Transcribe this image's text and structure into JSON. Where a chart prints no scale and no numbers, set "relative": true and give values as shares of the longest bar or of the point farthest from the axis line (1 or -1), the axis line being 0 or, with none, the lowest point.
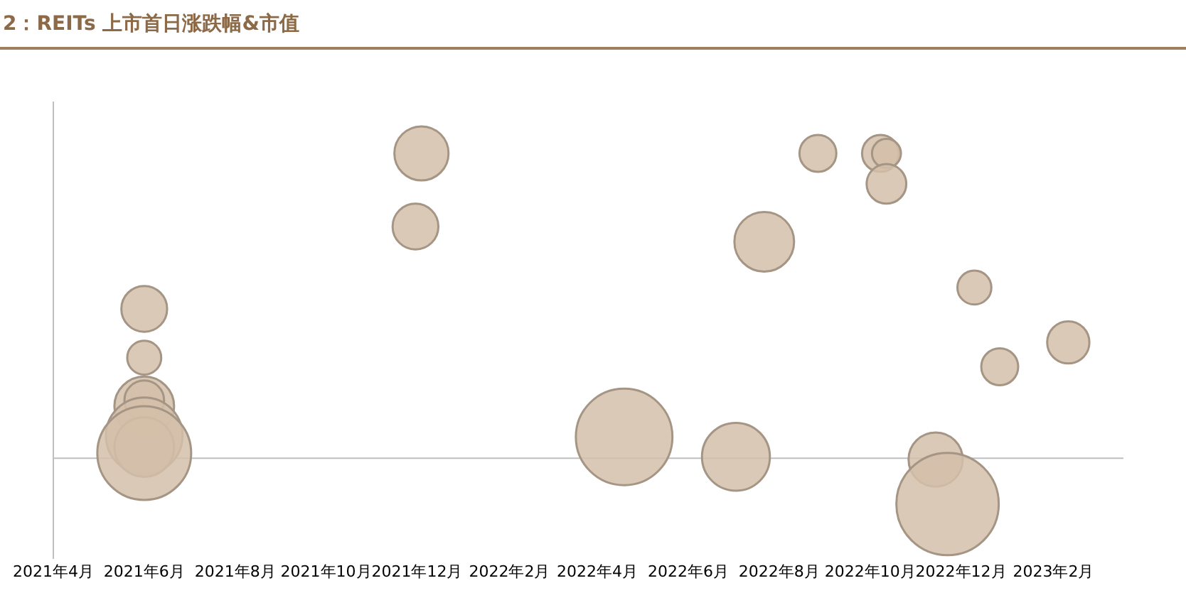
{
  "chart_data": {
    "type": "bubble",
    "title": "2：REITs 上市首日涨跌幅&市值",
    "relative": true,
    "xlim": [
      "2021-04-01",
      "2023-03-20"
    ],
    "xticks": [
      {
        "value": "2021-04-01",
        "label": "2021年4月"
      },
      {
        "value": "2021-06-01",
        "label": "2021年6月"
      },
      {
        "value": "2021-08-01",
        "label": "2021年8月"
      },
      {
        "value": "2021-10-01",
        "label": "2021年10月"
      },
      {
        "value": "2021-12-01",
        "label": "2021年12月"
      },
      {
        "value": "2022-02-01",
        "label": "2022年2月"
      },
      {
        "value": "2022-04-01",
        "label": "2022年4月"
      },
      {
        "value": "2022-06-01",
        "label": "2022年6月"
      },
      {
        "value": "2022-08-01",
        "label": "2022年8月"
      },
      {
        "value": "2022-10-01",
        "label": "2022年10月"
      },
      {
        "value": "2022-12-01",
        "label": "2022年12月"
      },
      {
        "value": "2023-02-01",
        "label": "2023年2月"
      }
    ],
    "grid": false,
    "legend": false,
    "series": [
      {
        "color": "#d3bfa9",
        "x": [
          "2021-06-01",
          "2021-06-01",
          "2021-06-01",
          "2021-06-01",
          "2021-06-01",
          "2021-06-01",
          "2021-06-01",
          "2021-12-04",
          "2021-11-30",
          "2022-08-27",
          "2022-10-08",
          "2022-10-12",
          "2022-10-12",
          "2022-07-22",
          "2022-12-10",
          "2022-12-27",
          "2023-02-11",
          "2022-04-19",
          "2022-07-03",
          "2022-11-14",
          "2022-11-22"
        ],
        "values": [
          0.49,
          0.33,
          0.17,
          0.19,
          0.074,
          0.037,
          0.017,
          1.0,
          0.76,
          1.0,
          1.0,
          1.0,
          0.9,
          0.71,
          0.56,
          0.3,
          0.38,
          0.07,
          0.005,
          -0.004,
          -0.15
        ],
        "sizes": [
          0.2,
          0.11,
          0.34,
          0.15,
          0.56,
          0.34,
          0.84,
          0.28,
          0.2,
          0.13,
          0.13,
          0.08,
          0.15,
          0.34,
          0.11,
          0.13,
          0.17,
          0.89,
          0.44,
          0.28,
          1
        ]
      }
    ]
  }
}
